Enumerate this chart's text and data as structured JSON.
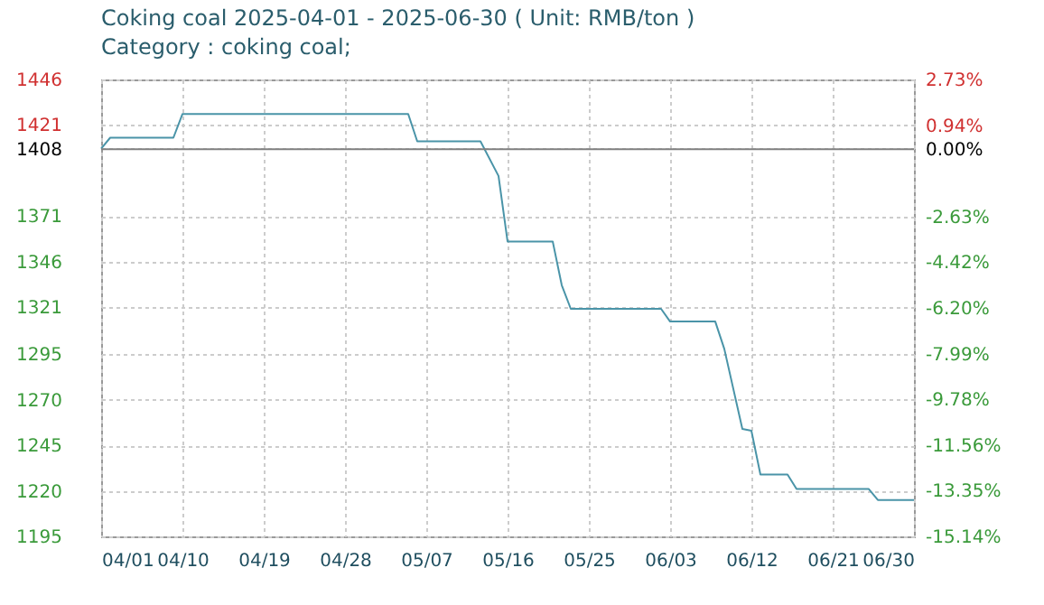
{
  "chart_data": {
    "type": "line",
    "title": "Coking coal 2025-04-01 - 2025-06-30    ( Unit: RMB/ton )",
    "subtitle": "Category : coking coal;",
    "x": [
      "2025-04-01",
      "2025-04-02",
      "2025-04-09",
      "2025-04-10",
      "2025-05-05",
      "2025-05-06",
      "2025-05-13",
      "2025-05-15",
      "2025-05-16",
      "2025-05-21",
      "2025-05-22",
      "2025-05-23",
      "2025-06-02",
      "2025-06-03",
      "2025-06-08",
      "2025-06-09",
      "2025-06-11",
      "2025-06-12",
      "2025-06-13",
      "2025-06-16",
      "2025-06-17",
      "2025-06-25",
      "2025-06-26",
      "2025-06-30"
    ],
    "series": [
      {
        "color": "#4a94a8",
        "values": [
          1408,
          1414,
          1414,
          1427,
          1427,
          1412,
          1412,
          1393,
          1357,
          1357,
          1333,
          1320,
          1320,
          1313,
          1313,
          1298,
          1254,
          1253,
          1229,
          1229,
          1221,
          1221,
          1215,
          1215
        ]
      }
    ],
    "xlim": [
      "2025-04-01",
      "2025-06-30"
    ],
    "xticks": [
      {
        "value": "2025-04-01",
        "label": "04/01"
      },
      {
        "value": "2025-04-10",
        "label": "04/10"
      },
      {
        "value": "2025-04-19",
        "label": "04/19"
      },
      {
        "value": "2025-04-28",
        "label": "04/28"
      },
      {
        "value": "2025-05-07",
        "label": "05/07"
      },
      {
        "value": "2025-05-16",
        "label": "05/16"
      },
      {
        "value": "2025-05-25",
        "label": "05/25"
      },
      {
        "value": "2025-06-03",
        "label": "06/03"
      },
      {
        "value": "2025-06-12",
        "label": "06/12"
      },
      {
        "value": "2025-06-21",
        "label": "06/21"
      },
      {
        "value": "2025-06-30",
        "label": "06/30"
      }
    ],
    "ylim": [
      1195,
      1446
    ],
    "yticks": [
      1195,
      1220,
      1245,
      1270,
      1295,
      1321,
      1346,
      1371,
      1408,
      1421,
      1446
    ],
    "y2lim": [
      -15.14,
      2.73
    ],
    "y2ticks": [
      {
        "value": -15.14,
        "label": "-15.14%"
      },
      {
        "value": -13.35,
        "label": "-13.35%"
      },
      {
        "value": -11.56,
        "label": "-11.56%"
      },
      {
        "value": -9.78,
        "label": "-9.78%"
      },
      {
        "value": -7.99,
        "label": "-7.99%"
      },
      {
        "value": -6.2,
        "label": "-6.20%"
      },
      {
        "value": -4.42,
        "label": "-4.42%"
      },
      {
        "value": -2.63,
        "label": "-2.63%"
      },
      {
        "value": 0,
        "label": "0.00%"
      },
      {
        "value": 0.94,
        "label": "0.94%"
      },
      {
        "value": 2.73,
        "label": "2.73%"
      }
    ],
    "ref_lines": [
      {
        "axis": "y2",
        "value": 0,
        "color": "#808080"
      }
    ],
    "grid": true,
    "legend": false,
    "marker": "none",
    "line_style": "solid"
  }
}
